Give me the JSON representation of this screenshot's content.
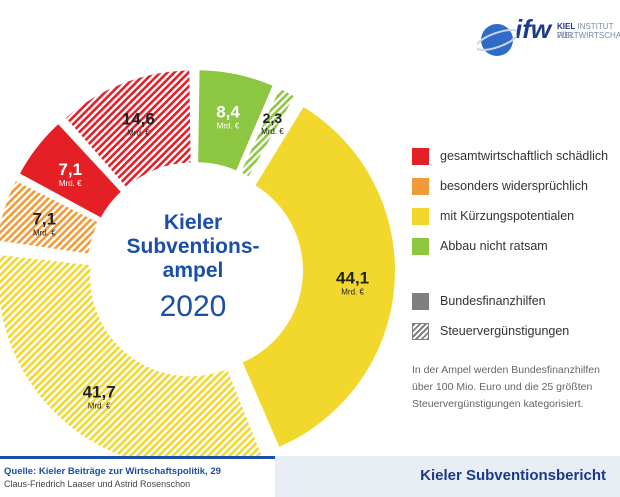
{
  "chart_data": {
    "type": "pie",
    "title_lines": [
      "Kieler",
      "Subventions-",
      "ampel"
    ],
    "year": "2020",
    "unit_label": "Mrd. €",
    "slices": [
      {
        "value": 8.4,
        "label": "8,4",
        "category": "Abbau nicht ratsam",
        "type": "Bundesfinanzhilfen",
        "color": "#8dc641"
      },
      {
        "value": 2.3,
        "label": "2,3",
        "category": "Abbau nicht ratsam",
        "type": "Steuervergünstigungen",
        "color": "#8dc641"
      },
      {
        "value": 44.1,
        "label": "44,1",
        "category": "mit Kürzungspotentialen",
        "type": "Bundesfinanzhilfen",
        "color": "#f2d82c"
      },
      {
        "value": 41.7,
        "label": "41,7",
        "category": "mit Kürzungspotentialen",
        "type": "Steuervergünstigungen",
        "color": "#f2d82c"
      },
      {
        "value": 7.1,
        "label": "7,1",
        "category": "besonders widersprüchlich",
        "type": "Steuervergünstigungen",
        "color": "#f39a38"
      },
      {
        "value": 7.1,
        "label": "7,1",
        "category": "gesamtwirtschaftlich schädlich",
        "type": "Bundesfinanzhilfen",
        "color": "#e41f26"
      },
      {
        "value": 14.6,
        "label": "14,6",
        "category": "gesamtwirtschaftlich schädlich",
        "type": "Steuervergünstigungen",
        "color": "#e41f26"
      }
    ]
  },
  "logo": {
    "brand": "ifw",
    "line1_bold": "KIEL",
    "line1_rest": " INSTITUT FÜR",
    "line2": "WELTWIRTSCHAFT"
  },
  "legend": {
    "colors": [
      {
        "label": "gesamtwirtschaftlich schädlich",
        "color": "#e41f26",
        "icon": "square"
      },
      {
        "label": "besonders widersprüchlich",
        "color": "#f39a38",
        "icon": "square"
      },
      {
        "label": "mit Kürzungspotentialen",
        "color": "#f2d82c",
        "icon": "square"
      },
      {
        "label": "Abbau nicht ratsam",
        "color": "#8dc641",
        "icon": "square"
      }
    ],
    "types": [
      {
        "label": "Bundesfinanzhilfen",
        "color": "#7f7f7f",
        "icon": "solid-square"
      },
      {
        "label": "Steuervergünstigungen",
        "color": "#7f7f7f",
        "icon": "hatched-square"
      }
    ]
  },
  "note": {
    "lines": [
      "In der Ampel werden Bundesfinanzhilfen",
      "über 100 Mio. Euro und die 25 größten",
      "Steuervergünstigungen kategorisiert."
    ]
  },
  "footer": {
    "source": "Quelle: Kieler Beiträge zur Wirtschaftspolitik, 29",
    "authors": "Claus-Friedrich Laaser und Astrid Rosenschon",
    "brand": "Kieler Subventionsbericht"
  }
}
